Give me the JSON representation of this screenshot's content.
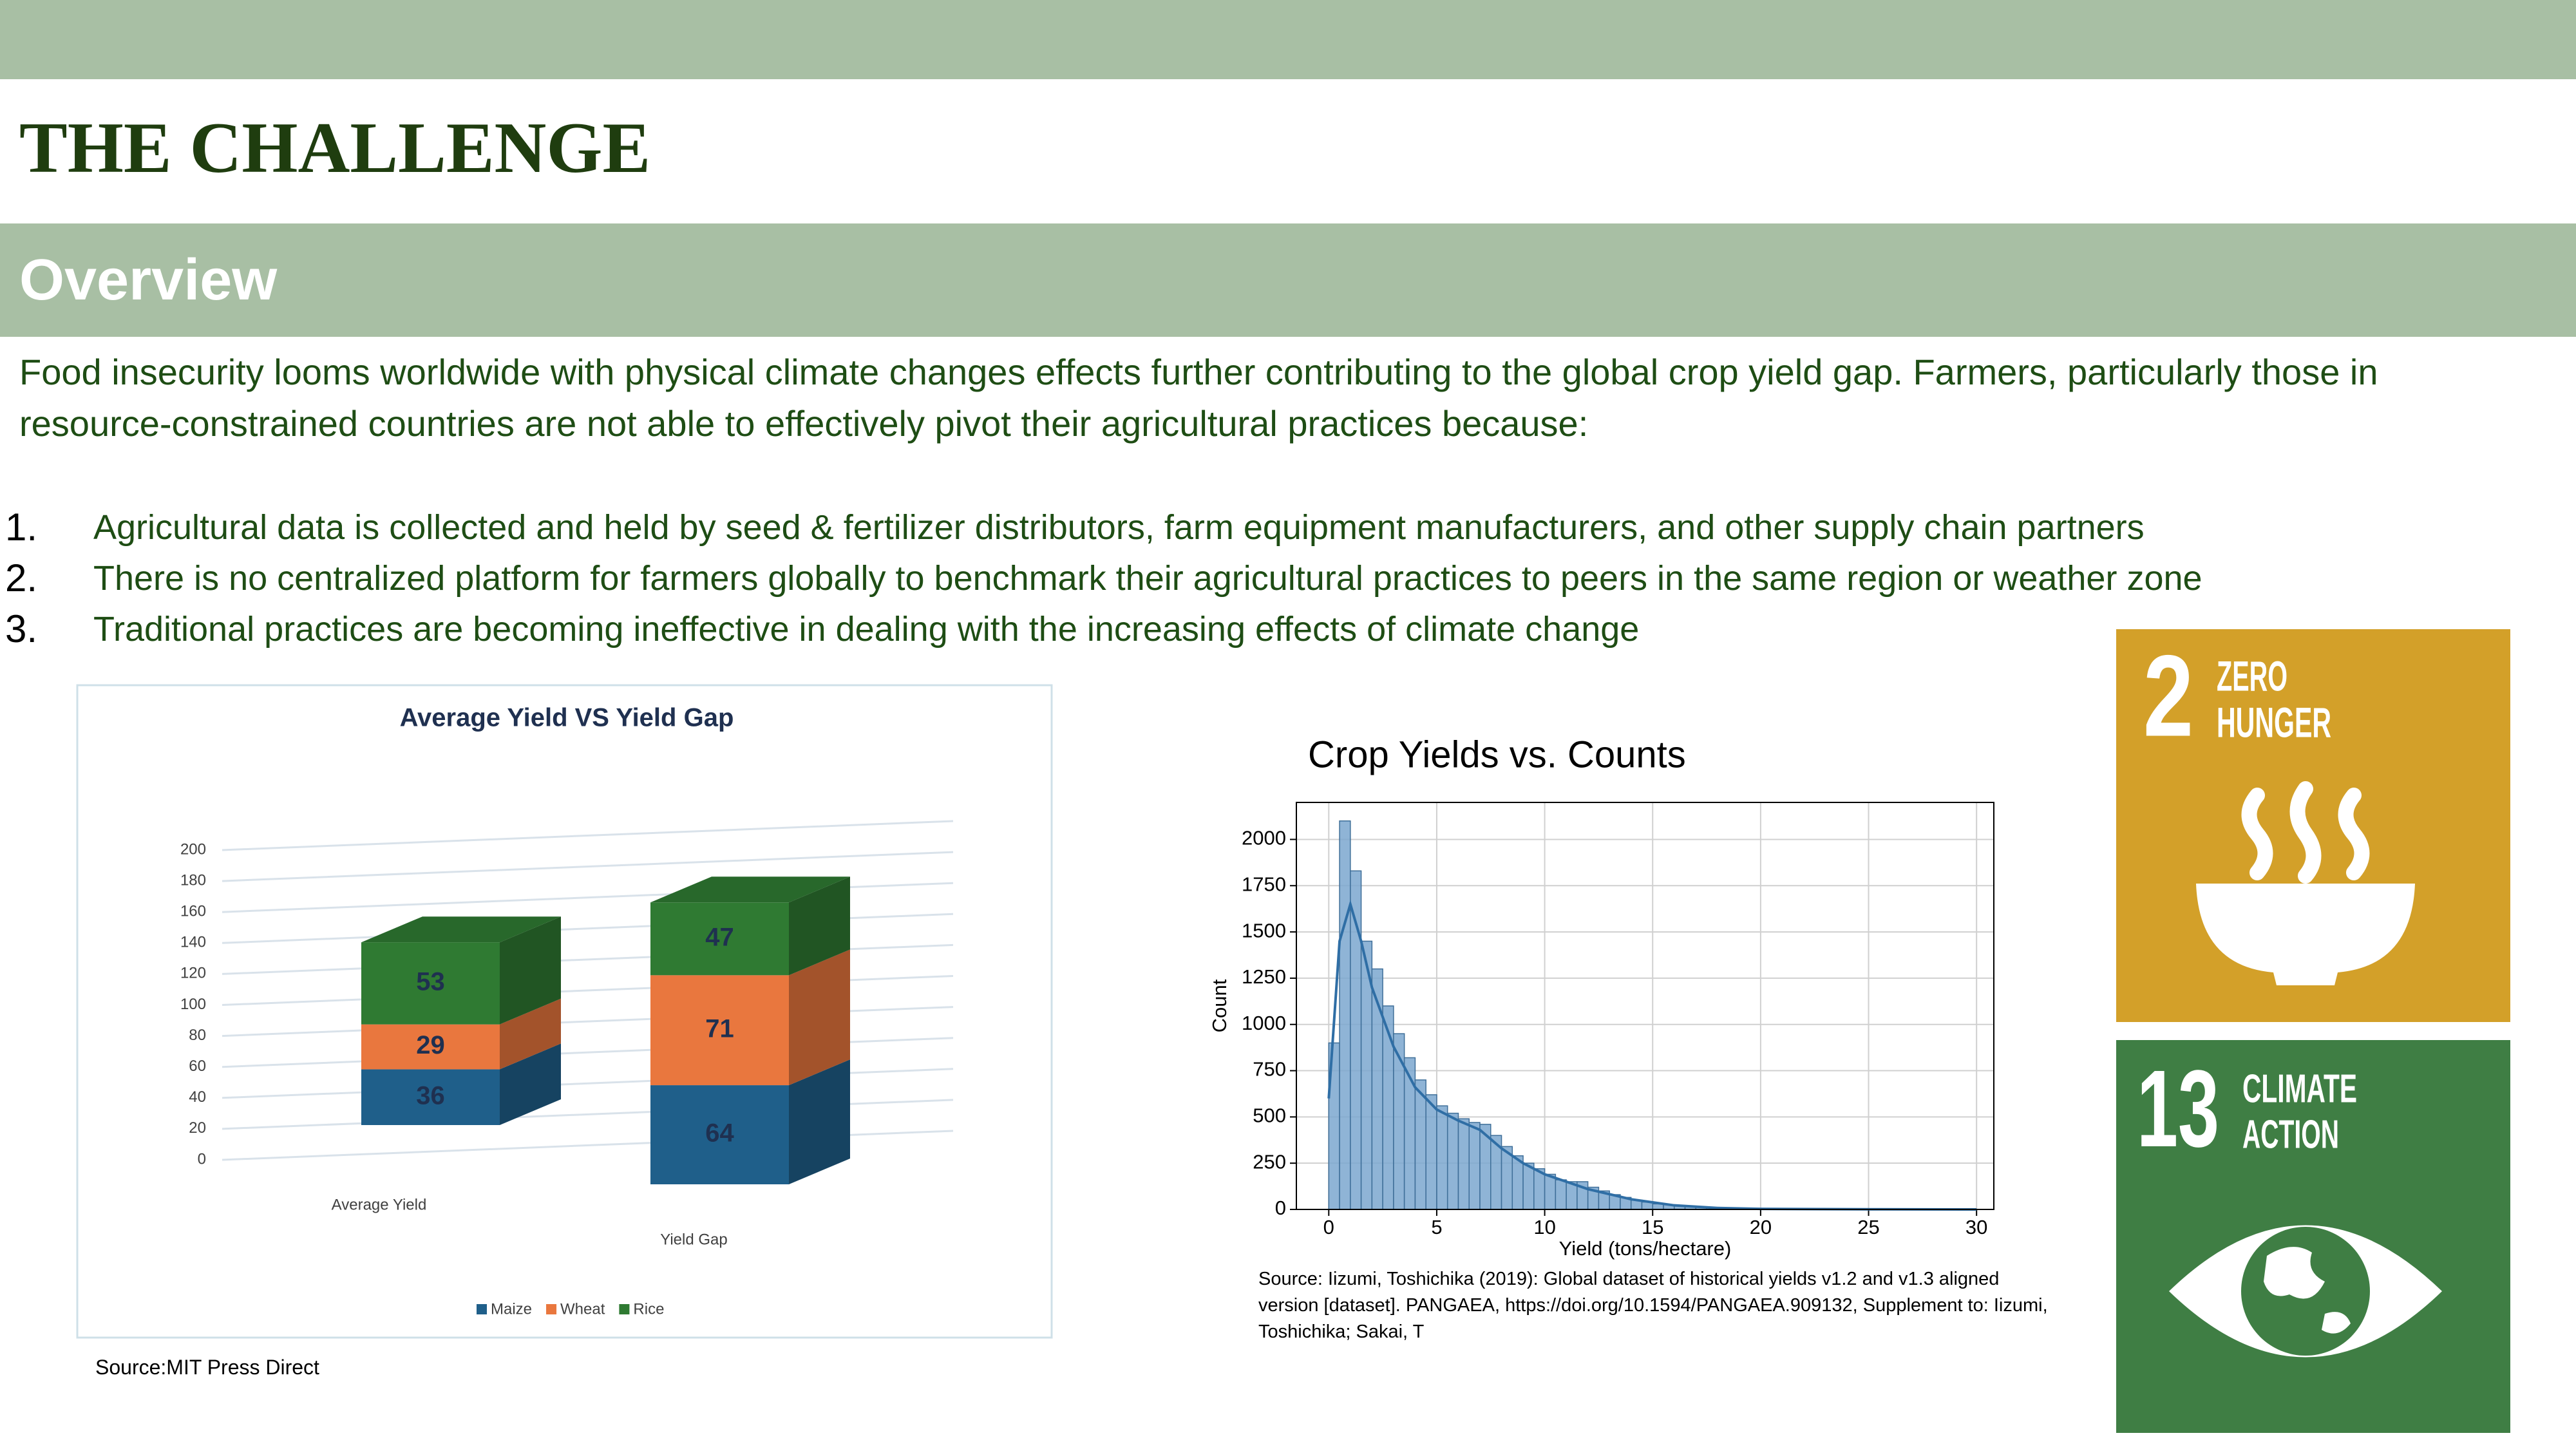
{
  "header": {
    "title": "THE CHALLENGE"
  },
  "section": {
    "title": "Overview",
    "intro": "Food insecurity looms worldwide with physical climate changes effects further contributing to the global crop yield gap. Farmers, particularly those in resource-constrained countries are not able to effectively pivot their agricultural practices because:",
    "list": [
      {
        "number": "1.",
        "text": "Agricultural data is collected and held by seed & fertilizer distributors, farm equipment manufacturers, and other supply chain partners"
      },
      {
        "number": "2.",
        "text": "There is no centralized platform for farmers globally to benchmark their agricultural practices to peers in the same region or weather zone"
      },
      {
        "number": "3.",
        "text": "Traditional practices are becoming ineffective in dealing with the increasing effects of climate change"
      }
    ]
  },
  "chart_data": [
    {
      "type": "bar",
      "stacked": true,
      "title": "Average Yield VS Yield Gap",
      "categories": [
        "Average Yield",
        "Yield Gap"
      ],
      "series": [
        {
          "name": "Maize",
          "color": "#1f5f8a",
          "values": [
            36,
            64
          ]
        },
        {
          "name": "Wheat",
          "color": "#e9773e",
          "values": [
            29,
            71
          ]
        },
        {
          "name": "Rice",
          "color": "#2f7a32",
          "values": [
            53,
            47
          ]
        }
      ],
      "ylim": [
        0,
        200
      ],
      "yticks": [
        0,
        20,
        40,
        60,
        80,
        100,
        120,
        140,
        160,
        180,
        200
      ],
      "grid": true,
      "legend": "bottom",
      "source": "Source:MIT Press Direct"
    },
    {
      "type": "histogram",
      "title": "Crop Yields vs. Counts",
      "xlabel": "Yield (tons/hectare)",
      "ylabel": "Count",
      "bins": [
        0,
        0.5,
        1,
        1.5,
        2,
        2.5,
        3,
        3.5,
        4,
        4.5,
        5,
        5.5,
        6,
        6.5,
        7,
        7.5,
        8,
        8.5,
        9,
        9.5,
        10,
        10.5,
        11,
        11.5,
        12,
        12.5,
        13,
        13.5,
        14,
        14.5,
        15,
        15.5,
        16,
        16.5,
        17,
        17.5,
        18,
        18.5,
        19,
        19.5,
        20,
        20.5,
        21,
        21.5,
        22,
        22.5,
        23,
        23.5,
        24,
        24.5,
        25,
        25.5,
        26,
        26.5,
        27,
        27.5,
        28,
        28.5,
        29,
        29.5,
        30
      ],
      "counts": [
        900,
        2100,
        1830,
        1450,
        1300,
        1100,
        950,
        820,
        700,
        620,
        560,
        520,
        490,
        470,
        460,
        400,
        340,
        290,
        250,
        220,
        190,
        160,
        150,
        150,
        120,
        100,
        80,
        65,
        50,
        40,
        30,
        25,
        20,
        15,
        12,
        10,
        8,
        6,
        5,
        4,
        3,
        3,
        2,
        2,
        2,
        1,
        1,
        1,
        1,
        1,
        1,
        1,
        0,
        0,
        0,
        1,
        0,
        0,
        0,
        0
      ],
      "color": "#7ba7cf",
      "edgecolor": "#3f6f99",
      "kde": {
        "x": [
          0,
          0.5,
          1,
          1.5,
          2,
          3,
          4,
          5,
          6,
          7,
          8,
          9,
          10,
          11,
          12,
          14,
          16,
          18,
          20,
          25,
          30
        ],
        "values": [
          600,
          1450,
          1650,
          1450,
          1200,
          880,
          660,
          540,
          480,
          430,
          330,
          250,
          190,
          150,
          110,
          55,
          22,
          8,
          3,
          1,
          0
        ],
        "color": "#2f6ea5"
      },
      "xlim": [
        -1.5,
        30.8
      ],
      "xticks": [
        0,
        5,
        10,
        15,
        20,
        25,
        30
      ],
      "ylim": [
        0,
        2200
      ],
      "yticks": [
        0,
        250,
        500,
        750,
        1000,
        1250,
        1500,
        1750,
        2000
      ],
      "grid": true,
      "source": "Source: Iizumi, Toshichika (2019): Global dataset of historical yields v1.2 and v1.3 aligned version [dataset]. PANGAEA, https://doi.org/10.1594/PANGAEA.909132, Supplement to: Iizumi, Toshichika; Sakai, T"
    }
  ],
  "sdg_icons": [
    {
      "number": "2",
      "label": [
        "ZERO",
        "HUNGER"
      ]
    },
    {
      "number": "13",
      "label": [
        "CLIMATE",
        "ACTION"
      ]
    }
  ]
}
